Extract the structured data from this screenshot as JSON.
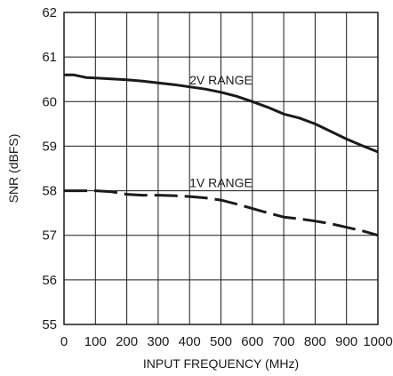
{
  "chart_data": {
    "type": "line",
    "title": "",
    "xlabel": "INPUT FREQUENCY (MHz)",
    "ylabel": "SNR (dBFS)",
    "xlim": [
      0,
      1000
    ],
    "ylim": [
      55,
      62
    ],
    "xticks": [
      0,
      100,
      200,
      300,
      400,
      500,
      600,
      700,
      800,
      900,
      1000
    ],
    "yticks": [
      55,
      56,
      57,
      58,
      59,
      60,
      61,
      62
    ],
    "grid": true,
    "legend": "none",
    "series": [
      {
        "name": "2V RANGE",
        "style": "solid",
        "color": "#1a1a1a",
        "x": [
          0,
          30,
          70,
          100,
          150,
          200,
          250,
          300,
          350,
          400,
          450,
          500,
          550,
          600,
          650,
          700,
          750,
          800,
          850,
          900,
          950,
          1000
        ],
        "y": [
          60.6,
          60.6,
          60.54,
          60.53,
          60.51,
          60.49,
          60.46,
          60.42,
          60.38,
          60.33,
          60.28,
          60.21,
          60.12,
          60.0,
          59.87,
          59.72,
          59.63,
          59.5,
          59.33,
          59.16,
          59.01,
          58.87
        ]
      },
      {
        "name": "1V RANGE",
        "style": "dashed",
        "color": "#1a1a1a",
        "x": [
          0,
          100,
          150,
          200,
          250,
          300,
          350,
          400,
          450,
          500,
          550,
          600,
          650,
          700,
          750,
          800,
          850,
          900,
          950,
          1000
        ],
        "y": [
          58.0,
          58.0,
          57.98,
          57.92,
          57.9,
          57.9,
          57.89,
          57.87,
          57.84,
          57.79,
          57.7,
          57.6,
          57.5,
          57.41,
          57.37,
          57.32,
          57.26,
          57.18,
          57.1,
          57.0
        ]
      }
    ]
  }
}
